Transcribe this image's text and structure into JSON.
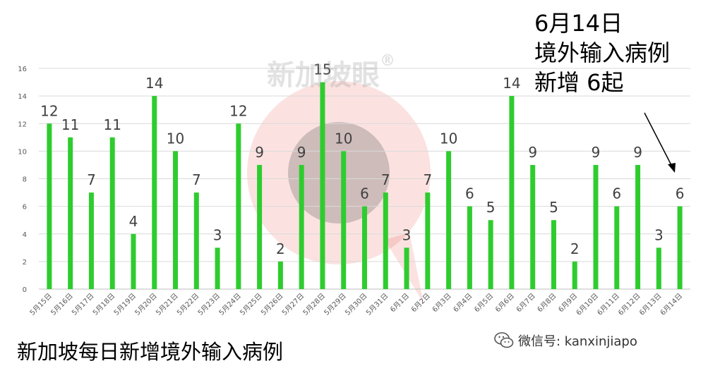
{
  "chart_data": {
    "type": "bar",
    "categories": [
      "5月15日",
      "5月16日",
      "5月17日",
      "5月18日",
      "5月19日",
      "5月20日",
      "5月21日",
      "5月22日",
      "5月23日",
      "5月24日",
      "5月25日",
      "5月26日",
      "5月27日",
      "5月28日",
      "5月29日",
      "5月30日",
      "5月31日",
      "6月1日",
      "6月2日",
      "6月3日",
      "6月4日",
      "6月5日",
      "6月6日",
      "6月7日",
      "6月8日",
      "6月9日",
      "6月10日",
      "6月11日",
      "6月12日",
      "6月13日",
      "6月14日"
    ],
    "values": [
      12,
      11,
      7,
      11,
      4,
      14,
      10,
      7,
      3,
      12,
      9,
      2,
      9,
      15,
      10,
      6,
      7,
      3,
      7,
      10,
      6,
      5,
      14,
      9,
      5,
      2,
      9,
      6,
      9,
      3,
      6
    ],
    "ylim": [
      0,
      16
    ],
    "yticks": [
      0,
      2,
      4,
      6,
      8,
      10,
      12,
      14,
      16
    ],
    "grid": true,
    "bar_color": "#2ecc2e",
    "gridline_color": "#d9d9d9",
    "title": "新加坡每日新增境外输入病例"
  },
  "callout": {
    "lines": [
      "6月14日",
      "境外输入病例",
      "新增 6起"
    ]
  },
  "watermark": {
    "text": "新加坡眼",
    "mark": "®",
    "logo_color": "#e74c3c"
  },
  "wechat": {
    "icon": "wechat-icon",
    "text": "微信号: kanxinjiapo"
  }
}
